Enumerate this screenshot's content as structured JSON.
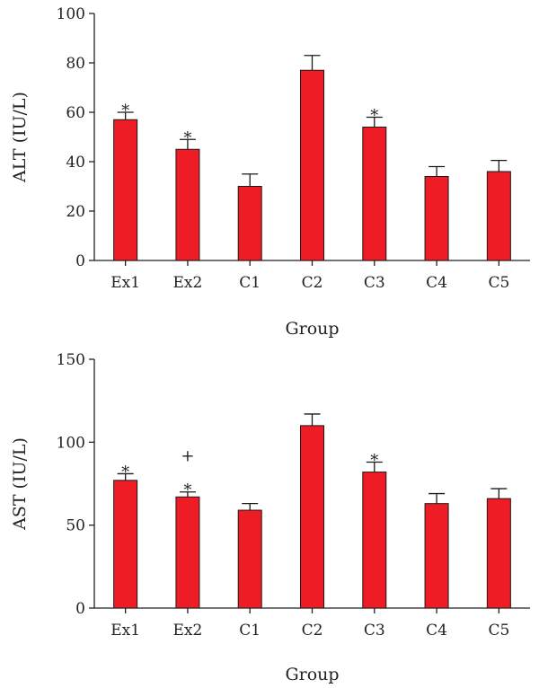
{
  "chart_data": [
    {
      "type": "bar",
      "categories": [
        "Ex1",
        "Ex2",
        "C1",
        "C2",
        "C3",
        "C4",
        "C5"
      ],
      "values": [
        57,
        45,
        30,
        77,
        54,
        34,
        36
      ],
      "errors": [
        3,
        4,
        5,
        6,
        4,
        4,
        4.5
      ],
      "annotations": [
        "*",
        "*",
        "",
        "",
        "*",
        "",
        ""
      ],
      "title": "",
      "xlabel": "Group",
      "ylabel": "ALT (IU/L)",
      "ylim": [
        0,
        100
      ],
      "yticks": [
        0,
        20,
        40,
        60,
        80,
        100
      ],
      "bar_color": "#ee1c25",
      "grid": false
    },
    {
      "type": "bar",
      "categories": [
        "Ex1",
        "Ex2",
        "C1",
        "C2",
        "C3",
        "C4",
        "C5"
      ],
      "values": [
        77,
        67,
        59,
        110,
        82,
        63,
        66
      ],
      "errors": [
        4,
        3,
        4,
        7,
        6,
        6,
        6
      ],
      "annotations": [
        "*",
        "+\n*",
        "",
        "",
        "*",
        "",
        ""
      ],
      "title": "",
      "xlabel": "Group",
      "ylabel": "AST (IU/L)",
      "ylim": [
        0,
        150
      ],
      "yticks": [
        0,
        50,
        100,
        150
      ],
      "bar_color": "#ee1c25",
      "grid": false
    }
  ]
}
